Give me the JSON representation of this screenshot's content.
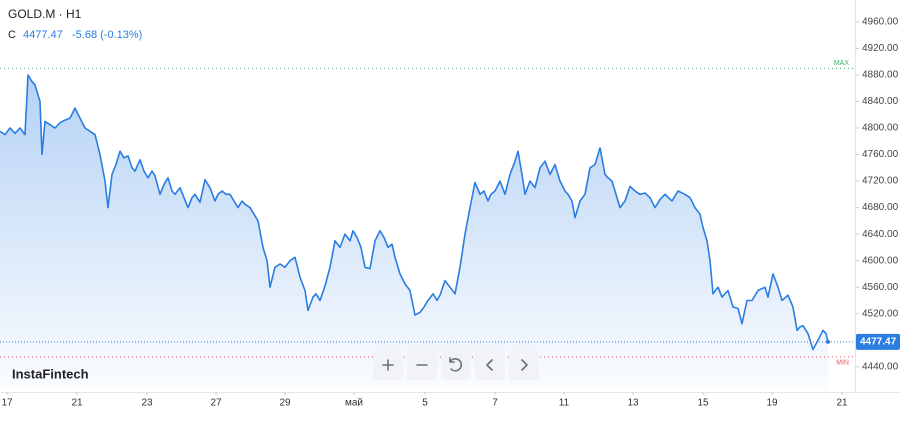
{
  "chart_data": {
    "type": "area",
    "title": "GOLD.M · H1",
    "close_prefix": "C",
    "close": 4477.47,
    "change": "-5.68 (-0.13%)",
    "brand": "InstaFintech",
    "color": "#2a7de1",
    "max_line": {
      "value": 4890,
      "label": "MAX",
      "color": "#3cb371"
    },
    "min_line": {
      "value": 4455,
      "label": "MIN",
      "color": "#e05a5a"
    },
    "grid": false,
    "xlim": [
      0,
      855
    ],
    "xticks": [
      {
        "value": 7,
        "label": "17"
      },
      {
        "value": 77,
        "label": "21"
      },
      {
        "value": 147,
        "label": "23"
      },
      {
        "value": 216,
        "label": "27"
      },
      {
        "value": 285,
        "label": "29"
      },
      {
        "value": 354,
        "label": "май"
      },
      {
        "value": 425,
        "label": "5"
      },
      {
        "value": 495,
        "label": "7"
      },
      {
        "value": 564,
        "label": "11"
      },
      {
        "value": 633,
        "label": "13"
      },
      {
        "value": 703,
        "label": "15"
      },
      {
        "value": 772,
        "label": "19"
      },
      {
        "value": 842,
        "label": "21"
      }
    ],
    "ylim": [
      4405,
      4993
    ],
    "yticks": [
      {
        "value": 4440,
        "label": "4440.00"
      },
      {
        "value": 4480,
        "label": "4480.00"
      },
      {
        "value": 4520,
        "label": "4520.00"
      },
      {
        "value": 4560,
        "label": "4560.00"
      },
      {
        "value": 4600,
        "label": "4600.00"
      },
      {
        "value": 4640,
        "label": "4640.00"
      },
      {
        "value": 4680,
        "label": "4680.00"
      },
      {
        "value": 4720,
        "label": "4720.00"
      },
      {
        "value": 4760,
        "label": "4760.00"
      },
      {
        "value": 4800,
        "label": "4800.00"
      },
      {
        "value": 4840,
        "label": "4840.00"
      },
      {
        "value": 4880,
        "label": "4880.00"
      },
      {
        "value": 4920,
        "label": "4920.00"
      },
      {
        "value": 4960,
        "label": "4960.00"
      }
    ],
    "x": [
      0,
      5,
      10,
      15,
      20,
      25,
      28,
      32,
      35,
      40,
      42,
      45,
      50,
      55,
      60,
      65,
      70,
      75,
      80,
      85,
      90,
      95,
      100,
      105,
      108,
      112,
      116,
      120,
      124,
      128,
      132,
      135,
      140,
      144,
      148,
      152,
      155,
      160,
      164,
      168,
      172,
      175,
      180,
      184,
      188,
      192,
      195,
      200,
      205,
      210,
      215,
      218,
      222,
      226,
      230,
      234,
      238,
      242,
      245,
      250,
      254,
      258,
      263,
      267,
      270,
      275,
      280,
      285,
      290,
      295,
      300,
      305,
      308,
      313,
      316,
      320,
      325,
      330,
      335,
      340,
      345,
      350,
      353,
      357,
      361,
      365,
      370,
      375,
      380,
      384,
      388,
      392,
      395,
      400,
      405,
      410,
      415,
      420,
      424,
      428,
      433,
      437,
      440,
      445,
      450,
      455,
      460,
      465,
      470,
      475,
      480,
      484,
      488,
      491,
      495,
      500,
      505,
      510,
      515,
      518,
      522,
      525,
      530,
      535,
      540,
      545,
      550,
      555,
      560,
      565,
      568,
      572,
      575,
      580,
      585,
      590,
      595,
      600,
      605,
      608,
      612,
      615,
      620,
      625,
      630,
      635,
      640,
      645,
      650,
      655,
      660,
      665,
      672,
      678,
      685,
      690,
      695,
      700,
      703,
      707,
      710,
      713,
      718,
      722,
      728,
      733,
      738,
      742,
      747,
      752,
      758,
      765,
      768,
      773,
      778,
      782,
      788,
      793,
      797,
      800,
      803,
      808,
      813,
      818,
      823,
      826,
      828
    ],
    "values": [
      4795,
      4790,
      4800,
      4792,
      4800,
      4790,
      4880,
      4870,
      4865,
      4840,
      4760,
      4810,
      4805,
      4800,
      4808,
      4812,
      4815,
      4830,
      4815,
      4800,
      4795,
      4790,
      4760,
      4720,
      4680,
      4730,
      4745,
      4765,
      4755,
      4758,
      4740,
      4735,
      4752,
      4735,
      4725,
      4735,
      4728,
      4700,
      4715,
      4725,
      4705,
      4700,
      4710,
      4695,
      4680,
      4695,
      4700,
      4688,
      4722,
      4710,
      4690,
      4700,
      4705,
      4700,
      4700,
      4690,
      4680,
      4690,
      4685,
      4680,
      4670,
      4660,
      4620,
      4600,
      4560,
      4590,
      4595,
      4590,
      4600,
      4605,
      4575,
      4555,
      4525,
      4545,
      4550,
      4540,
      4562,
      4590,
      4630,
      4620,
      4640,
      4630,
      4645,
      4635,
      4620,
      4590,
      4588,
      4630,
      4645,
      4635,
      4620,
      4625,
      4605,
      4580,
      4565,
      4555,
      4518,
      4522,
      4530,
      4540,
      4550,
      4540,
      4548,
      4570,
      4560,
      4550,
      4590,
      4640,
      4680,
      4718,
      4700,
      4705,
      4690,
      4700,
      4705,
      4720,
      4700,
      4730,
      4750,
      4765,
      4730,
      4700,
      4720,
      4710,
      4740,
      4750,
      4730,
      4745,
      4720,
      4705,
      4700,
      4690,
      4665,
      4690,
      4700,
      4740,
      4745,
      4770,
      4730,
      4725,
      4720,
      4705,
      4680,
      4690,
      4712,
      4705,
      4700,
      4702,
      4695,
      4680,
      4692,
      4700,
      4690,
      4705,
      4700,
      4695,
      4680,
      4670,
      4650,
      4630,
      4600,
      4550,
      4560,
      4545,
      4555,
      4530,
      4528,
      4505,
      4540,
      4540,
      4555,
      4560,
      4545,
      4580,
      4560,
      4540,
      4548,
      4530,
      4495,
      4500,
      4502,
      4490,
      4466,
      4480,
      4495,
      4490,
      4477.47
    ]
  }
}
